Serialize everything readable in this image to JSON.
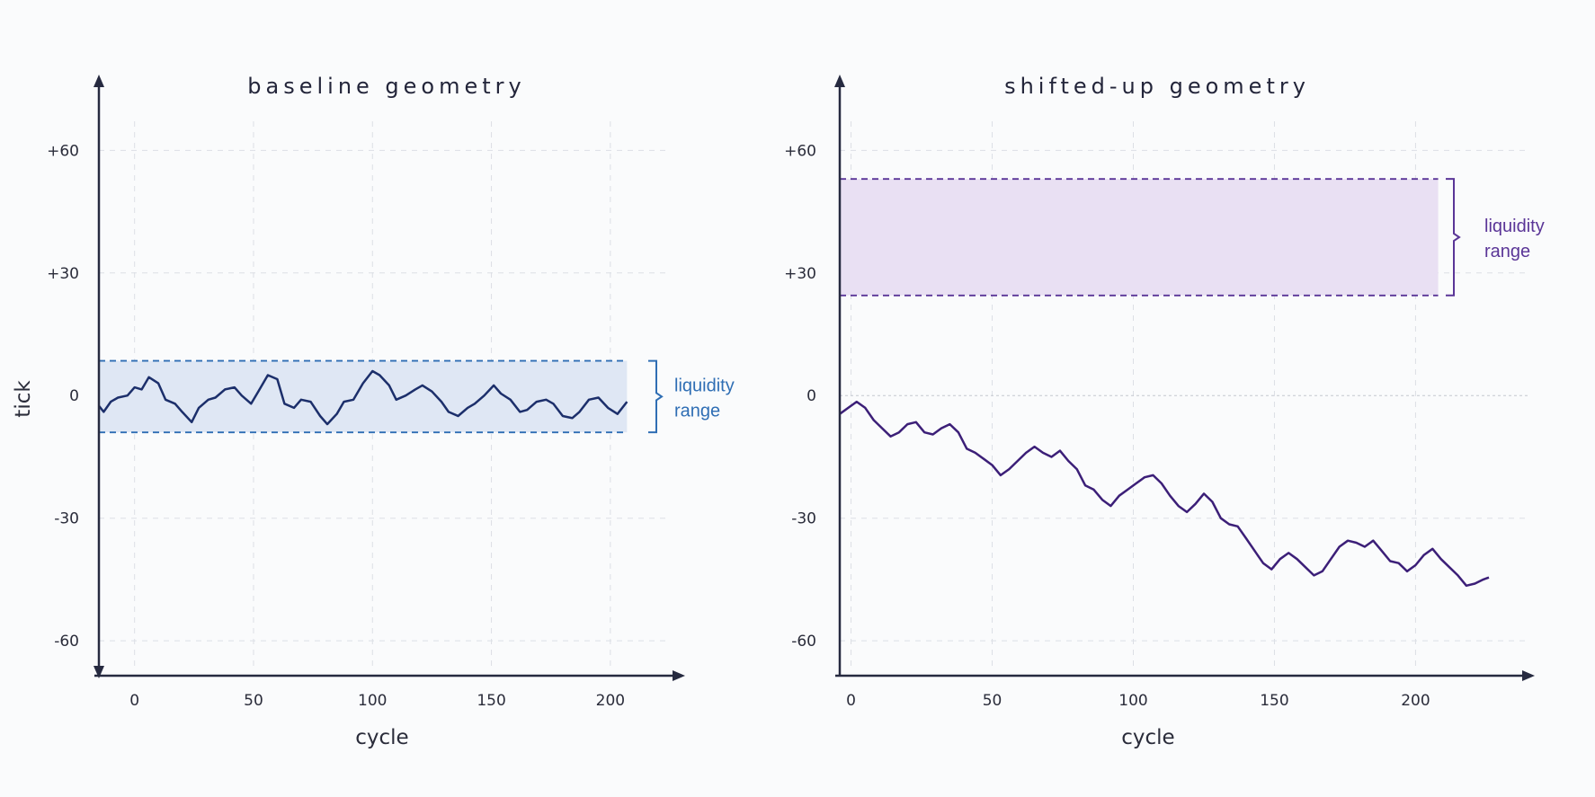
{
  "colors": {
    "axis": "#262a40",
    "grid": "#dcdfe5",
    "left_band_fill": "#dfe7f4",
    "left_band_edge": "#2f6eb4",
    "left_line": "#1c2f6b",
    "left_annot": "#2f6eb4",
    "right_band_fill": "#e9e0f3",
    "right_band_edge": "#5a3597",
    "right_line": "#3c1f78",
    "right_annot": "#5a3597"
  },
  "chart_data": [
    {
      "type": "line",
      "title": "baseline geometry",
      "xlabel": "cycle",
      "ylabel": "tick",
      "x_ticks": [
        "0",
        "50",
        "100",
        "150",
        "200"
      ],
      "y_ticks": [
        "+60",
        "+30",
        "0",
        "-30",
        "-60"
      ],
      "xlim": [
        -15,
        225
      ],
      "ylim": [
        -67,
        77
      ],
      "grid": true,
      "band": {
        "label_line1": "liquidity",
        "label_line2": "range",
        "lower": -9,
        "upper": 8.5,
        "x_end": 207
      },
      "series": [
        {
          "x": [
            -15,
            -13,
            -10,
            -7,
            -3,
            0,
            3,
            6,
            10,
            13,
            17,
            20,
            24,
            27,
            31,
            34,
            38,
            42,
            45,
            49,
            52,
            56,
            60,
            63,
            67,
            70,
            74,
            78,
            81,
            85,
            88,
            92,
            96,
            100,
            103,
            107,
            110,
            114,
            118,
            121,
            125,
            129,
            132,
            136,
            140,
            143,
            147,
            151,
            154,
            158,
            162,
            165,
            169,
            173,
            176,
            180,
            184,
            187,
            191,
            195,
            199,
            203,
            207
          ],
          "y": [
            -2.5,
            -4,
            -1.5,
            -0.5,
            0,
            2,
            1.5,
            4.5,
            3,
            -1,
            -2,
            -4,
            -6.5,
            -3,
            -1,
            -0.5,
            1.5,
            2,
            0,
            -2,
            1,
            5,
            4,
            -2,
            -3,
            -1,
            -1.5,
            -5,
            -7,
            -4.5,
            -1.5,
            -1,
            3,
            6,
            5,
            2.5,
            -1,
            0,
            1.5,
            2.5,
            1,
            -1.5,
            -4,
            -5,
            -3,
            -2,
            0,
            2.5,
            0.5,
            -1,
            -4,
            -3.5,
            -1.5,
            -1,
            -2,
            -5,
            -5.5,
            -4,
            -1,
            -0.5,
            -3,
            -4.5,
            -1.5
          ]
        }
      ]
    },
    {
      "type": "line",
      "title": "shifted-up geometry",
      "xlabel": "cycle",
      "ylabel": "",
      "x_ticks": [
        "0",
        "50",
        "100",
        "150",
        "200"
      ],
      "y_ticks": [
        "+60",
        "+30",
        "0",
        "-30",
        "-60"
      ],
      "xlim": [
        -4,
        240
      ],
      "ylim": [
        -67,
        77
      ],
      "grid": true,
      "band": {
        "label_line1": "liquidity",
        "label_line2": "range",
        "lower": 24.5,
        "upper": 53,
        "x_end": 208
      },
      "series": [
        {
          "x": [
            -4,
            -1,
            2,
            5,
            8,
            11,
            14,
            17,
            20,
            23,
            26,
            29,
            32,
            35,
            38,
            41,
            44,
            47,
            50,
            53,
            56,
            59,
            62,
            65,
            68,
            71,
            74,
            77,
            80,
            83,
            86,
            89,
            92,
            95,
            98,
            101,
            104,
            107,
            110,
            113,
            116,
            119,
            122,
            125,
            128,
            131,
            134,
            137,
            140,
            143,
            146,
            149,
            152,
            155,
            158,
            161,
            164,
            167,
            170,
            173,
            176,
            179,
            182,
            185,
            188,
            191,
            194,
            197,
            200,
            203,
            206,
            209,
            212,
            215,
            218,
            221,
            224,
            226
          ],
          "y": [
            -4.5,
            -3,
            -1.5,
            -3,
            -6,
            -8,
            -10,
            -9,
            -7,
            -6.5,
            -9,
            -9.5,
            -8,
            -7,
            -9,
            -13,
            -14,
            -15.5,
            -17,
            -19.5,
            -18,
            -16,
            -14,
            -12.5,
            -14,
            -15,
            -13.5,
            -16,
            -18,
            -22,
            -23,
            -25.5,
            -27,
            -24.5,
            -23,
            -21.5,
            -20,
            -19.5,
            -21.5,
            -24.5,
            -27,
            -28.5,
            -26.5,
            -24,
            -26,
            -30,
            -31.5,
            -32,
            -35,
            -38,
            -41,
            -42.5,
            -40,
            -38.5,
            -40,
            -42,
            -44,
            -43,
            -40,
            -37,
            -35.5,
            -36,
            -37,
            -35.5,
            -38,
            -40.5,
            -41,
            -43,
            -41.5,
            -39,
            -37.5,
            -40,
            -42,
            -44,
            -46.5,
            -46,
            -45,
            -44.5
          ]
        }
      ]
    }
  ]
}
